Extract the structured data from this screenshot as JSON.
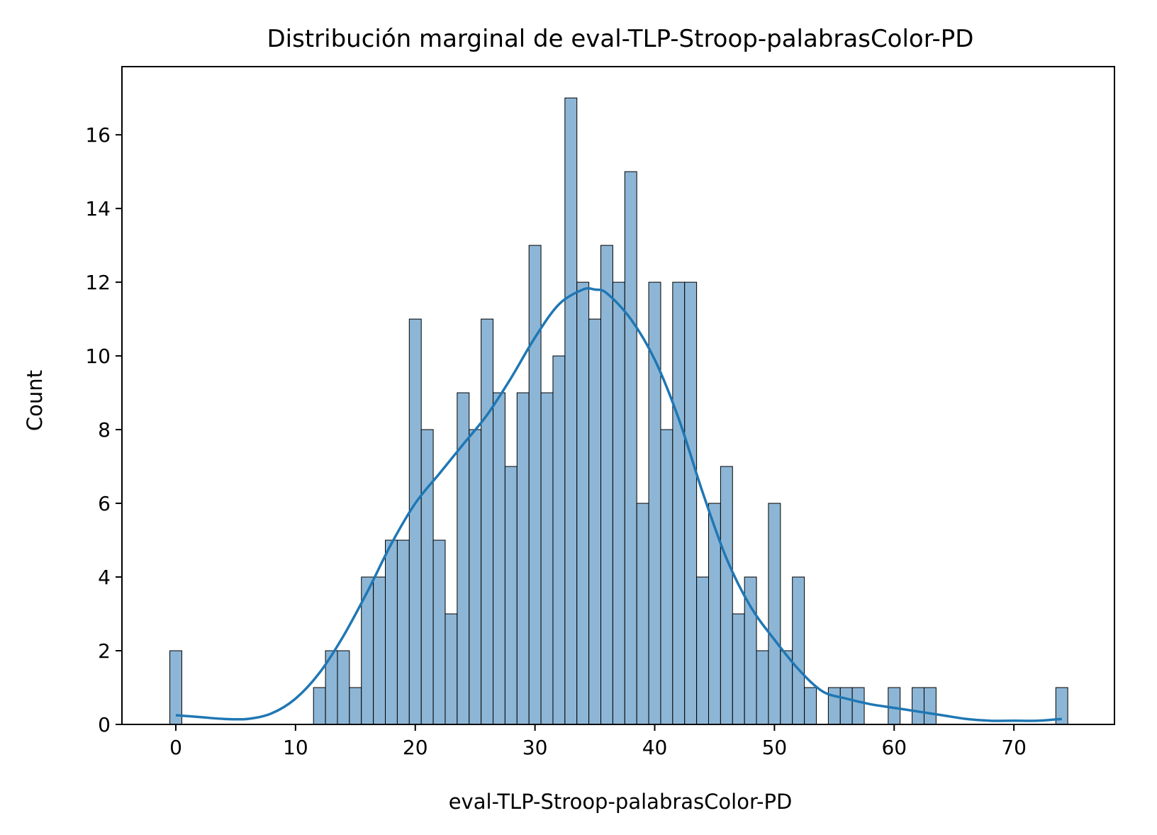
{
  "chart_data": {
    "type": "bar",
    "title": "Distribución marginal de eval-TLP-Stroop-palabrasColor-PD",
    "xlabel": "eval-TLP-Stroop-palabrasColor-PD",
    "ylabel": "Count",
    "xlim": [
      -4.5,
      78.4
    ],
    "ylim": [
      0,
      17.85
    ],
    "x_ticks": [
      0,
      10,
      20,
      30,
      40,
      50,
      60,
      70
    ],
    "y_ticks": [
      0,
      2,
      4,
      6,
      8,
      10,
      12,
      14,
      16
    ],
    "bin_start": -0.5,
    "bin_width": 1.0,
    "bins": [
      {
        "x": 0,
        "count": 2
      },
      {
        "x": 12,
        "count": 1
      },
      {
        "x": 13,
        "count": 2
      },
      {
        "x": 14,
        "count": 2
      },
      {
        "x": 15,
        "count": 1
      },
      {
        "x": 16,
        "count": 4
      },
      {
        "x": 17,
        "count": 4
      },
      {
        "x": 18,
        "count": 5
      },
      {
        "x": 19,
        "count": 5
      },
      {
        "x": 20,
        "count": 11
      },
      {
        "x": 21,
        "count": 8
      },
      {
        "x": 22,
        "count": 5
      },
      {
        "x": 23,
        "count": 3
      },
      {
        "x": 24,
        "count": 9
      },
      {
        "x": 25,
        "count": 8
      },
      {
        "x": 26,
        "count": 11
      },
      {
        "x": 27,
        "count": 9
      },
      {
        "x": 28,
        "count": 7
      },
      {
        "x": 29,
        "count": 9
      },
      {
        "x": 30,
        "count": 13
      },
      {
        "x": 31,
        "count": 9
      },
      {
        "x": 32,
        "count": 10
      },
      {
        "x": 33,
        "count": 17
      },
      {
        "x": 34,
        "count": 12
      },
      {
        "x": 35,
        "count": 11
      },
      {
        "x": 36,
        "count": 13
      },
      {
        "x": 37,
        "count": 12
      },
      {
        "x": 38,
        "count": 15
      },
      {
        "x": 39,
        "count": 6
      },
      {
        "x": 40,
        "count": 12
      },
      {
        "x": 41,
        "count": 8
      },
      {
        "x": 42,
        "count": 12
      },
      {
        "x": 43,
        "count": 12
      },
      {
        "x": 44,
        "count": 4
      },
      {
        "x": 45,
        "count": 6
      },
      {
        "x": 46,
        "count": 7
      },
      {
        "x": 47,
        "count": 3
      },
      {
        "x": 48,
        "count": 4
      },
      {
        "x": 49,
        "count": 2
      },
      {
        "x": 50,
        "count": 6
      },
      {
        "x": 51,
        "count": 2
      },
      {
        "x": 52,
        "count": 4
      },
      {
        "x": 53,
        "count": 1
      },
      {
        "x": 55,
        "count": 1
      },
      {
        "x": 56,
        "count": 1
      },
      {
        "x": 57,
        "count": 1
      },
      {
        "x": 60,
        "count": 1
      },
      {
        "x": 62,
        "count": 1
      },
      {
        "x": 63,
        "count": 1
      },
      {
        "x": 74,
        "count": 1
      }
    ],
    "kde": {
      "x": [
        0,
        2,
        4,
        6,
        8,
        10,
        12,
        14,
        16,
        18,
        20,
        22,
        24,
        26,
        28,
        30,
        32,
        34,
        35,
        36,
        38,
        40,
        42,
        44,
        46,
        48,
        50,
        52,
        54,
        56,
        58,
        60,
        62,
        64,
        66,
        68,
        70,
        72,
        74
      ],
      "y": [
        0.25,
        0.2,
        0.15,
        0.15,
        0.3,
        0.7,
        1.4,
        2.4,
        3.6,
        4.9,
        6.0,
        6.8,
        7.6,
        8.4,
        9.4,
        10.5,
        11.4,
        11.8,
        11.8,
        11.7,
        11.0,
        9.9,
        8.3,
        6.3,
        4.5,
        3.2,
        2.3,
        1.5,
        0.9,
        0.7,
        0.55,
        0.45,
        0.35,
        0.25,
        0.15,
        0.1,
        0.1,
        0.1,
        0.15
      ]
    },
    "colors": {
      "bar_fill": "#8db6d6",
      "bar_edge": "#000000",
      "kde_line": "#1f77b4",
      "axis": "#000000"
    },
    "grid": false,
    "legend": "none"
  }
}
